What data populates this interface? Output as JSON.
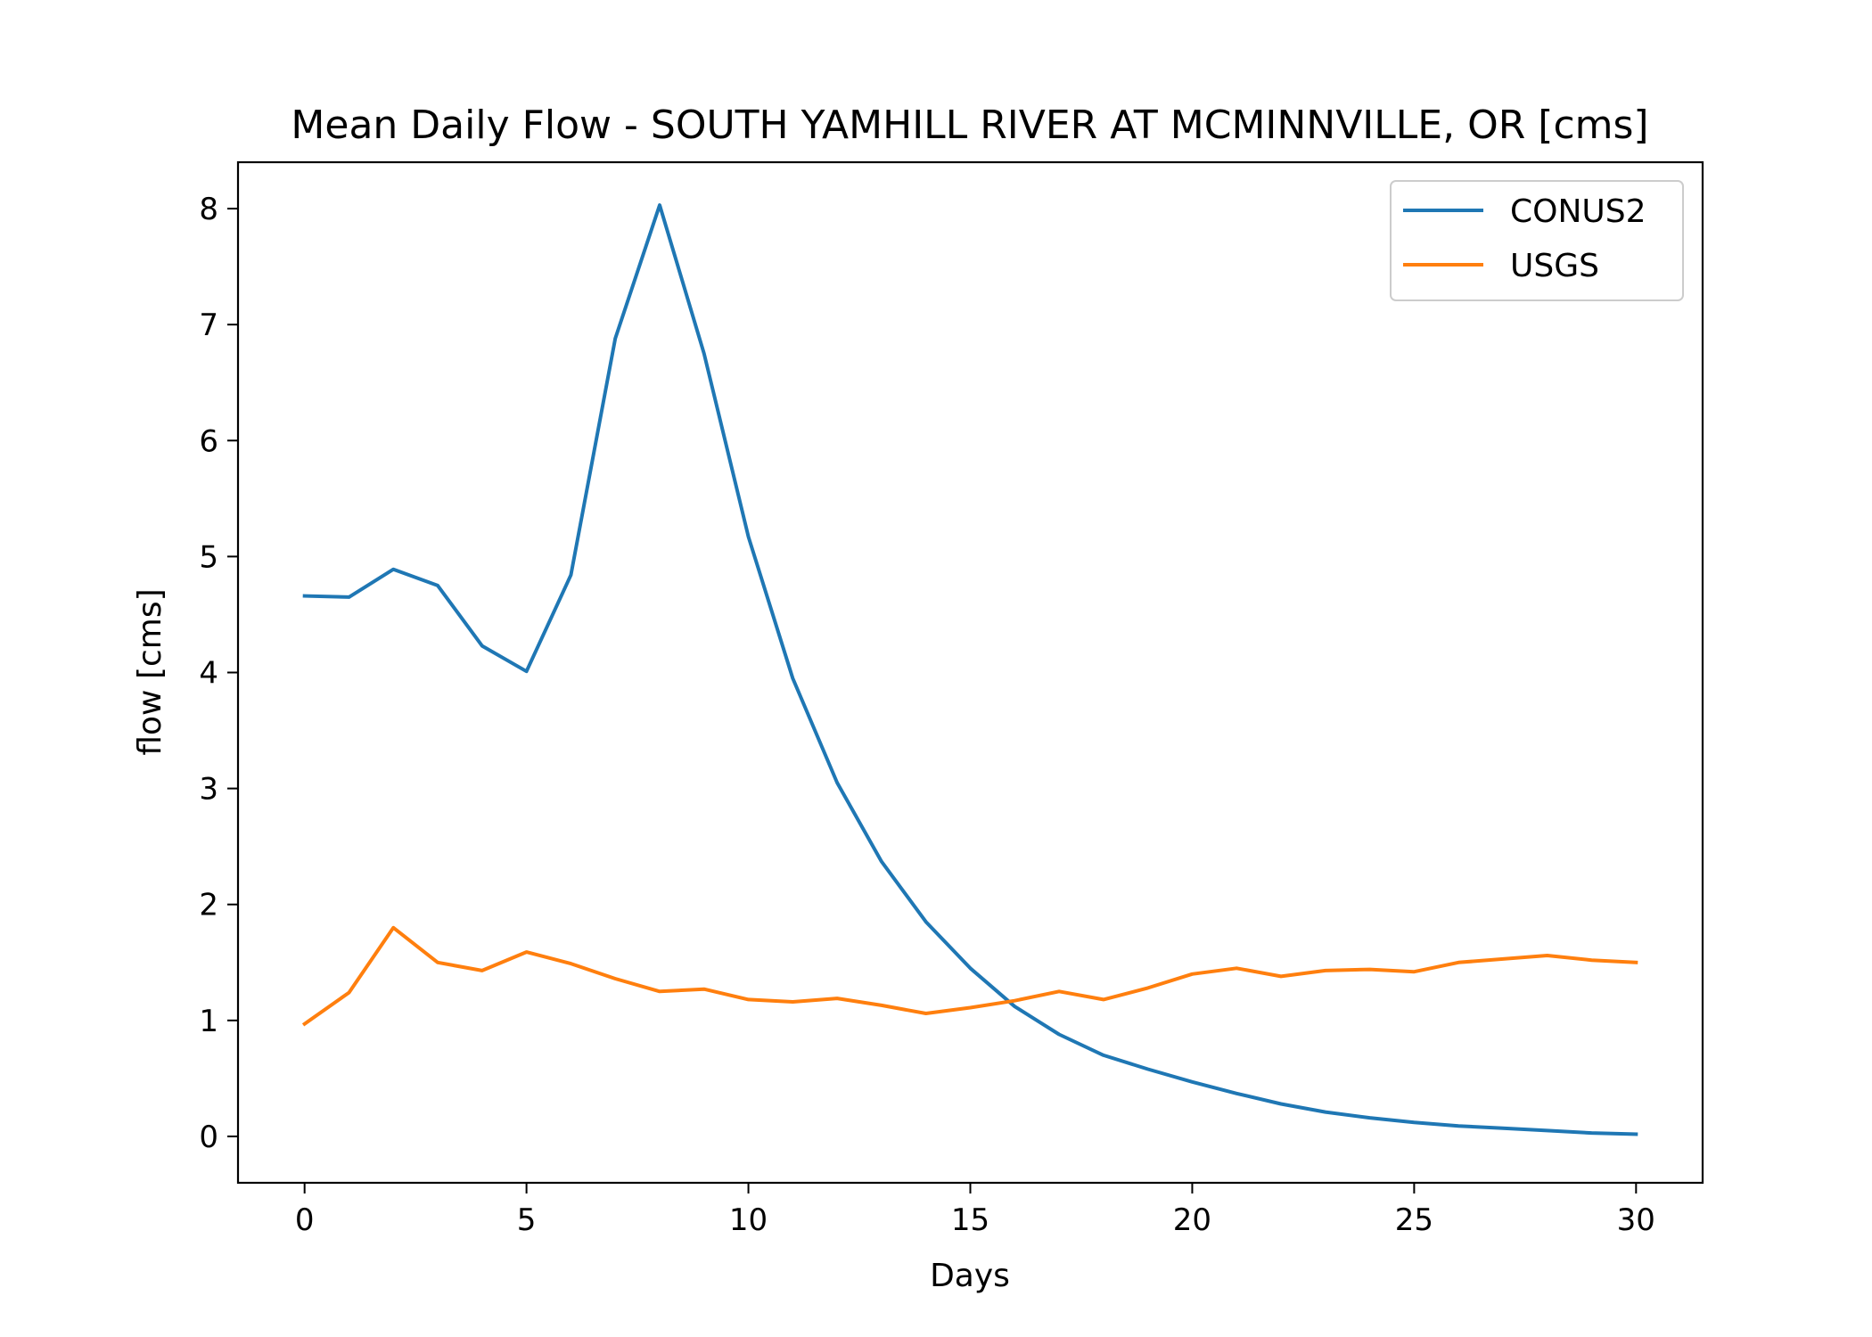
{
  "chart_data": {
    "type": "line",
    "title": "Mean Daily Flow - SOUTH YAMHILL RIVER AT MCMINNVILLE, OR [cms]",
    "xlabel": "Days",
    "ylabel": "flow [cms]",
    "xlim": [
      -1.5,
      31.5
    ],
    "ylim": [
      -0.4,
      8.4
    ],
    "xticks": [
      0,
      5,
      10,
      15,
      20,
      25,
      30
    ],
    "yticks": [
      0,
      1,
      2,
      3,
      4,
      5,
      6,
      7,
      8
    ],
    "grid": false,
    "legend_position": "upper-right",
    "x": [
      0,
      1,
      2,
      3,
      4,
      5,
      6,
      7,
      8,
      9,
      10,
      11,
      12,
      13,
      14,
      15,
      16,
      17,
      18,
      19,
      20,
      21,
      22,
      23,
      24,
      25,
      26,
      27,
      28,
      29,
      30
    ],
    "series": [
      {
        "name": "CONUS2",
        "color": "#1f77b4",
        "values": [
          4.66,
          4.65,
          4.89,
          4.75,
          4.23,
          4.01,
          4.84,
          6.88,
          8.03,
          6.75,
          5.17,
          3.95,
          3.05,
          2.37,
          1.85,
          1.45,
          1.12,
          0.88,
          0.7,
          0.58,
          0.47,
          0.37,
          0.28,
          0.21,
          0.16,
          0.12,
          0.09,
          0.07,
          0.05,
          0.03,
          0.02
        ]
      },
      {
        "name": "USGS",
        "color": "#ff7f0e",
        "values": [
          0.97,
          1.24,
          1.8,
          1.5,
          1.43,
          1.59,
          1.49,
          1.36,
          1.25,
          1.27,
          1.18,
          1.16,
          1.19,
          1.13,
          1.06,
          1.11,
          1.17,
          1.25,
          1.18,
          1.28,
          1.4,
          1.45,
          1.38,
          1.43,
          1.44,
          1.42,
          1.5,
          1.53,
          1.56,
          1.52,
          1.5
        ]
      }
    ]
  }
}
